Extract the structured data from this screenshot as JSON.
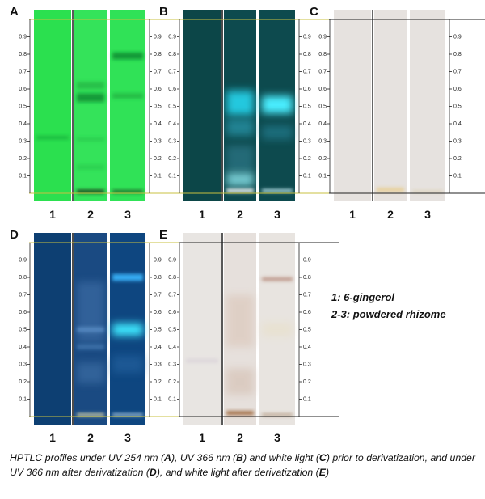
{
  "panels": [
    {
      "letter": "A"
    },
    {
      "letter": "B"
    },
    {
      "letter": "C"
    },
    {
      "letter": "D"
    },
    {
      "letter": "E"
    }
  ],
  "rf_ticks": [
    0.1,
    0.2,
    0.3,
    0.4,
    0.5,
    0.6,
    0.7,
    0.8,
    0.9
  ],
  "lanes": [
    "1",
    "2",
    "3"
  ],
  "legend": [
    "1: 6-gingerol",
    "2-3: powdered rhizome"
  ],
  "caption": [
    "HPTLC profiles under UV 254 nm (",
    "A",
    "), UV 366 nm (",
    "B",
    ") and white light (",
    "C",
    ") prior to derivatization, and under UV 366 nm after derivatization (",
    "D",
    "), and white light after derivatization (",
    "E",
    ")"
  ]
}
